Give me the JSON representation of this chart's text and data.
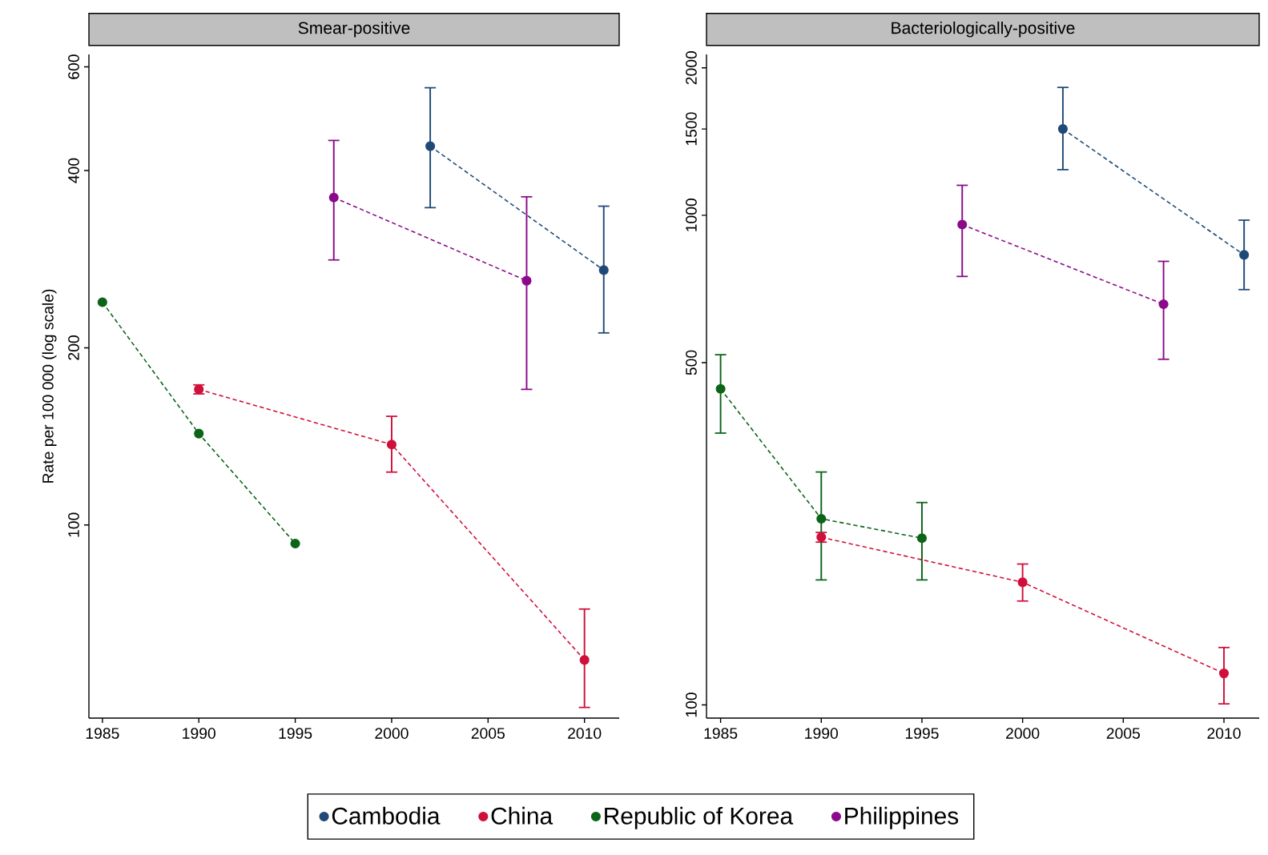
{
  "chart_data": [
    {
      "type": "line",
      "title": "Smear-positive",
      "ylabel": "Rate per 100 000 (log scale)",
      "log": "y",
      "xlim": [
        1984.3,
        2011.8
      ],
      "ylim": [
        47,
        630
      ],
      "xticks": [
        1985,
        1990,
        1995,
        2000,
        2005,
        2010
      ],
      "yticks": [
        100,
        200,
        400,
        600
      ],
      "marker": "circle",
      "line_style": "dashed",
      "legend": "bottom",
      "series": [
        {
          "name": "Cambodia",
          "color": "#1f4a78",
          "x": [
            2002,
            2011
          ],
          "values": [
            440,
            271
          ],
          "errors": [
            [
              346,
              553
            ],
            [
              212,
              348
            ]
          ]
        },
        {
          "name": "China",
          "color": "#d0103a",
          "x": [
            1990,
            2000,
            2010
          ],
          "values": [
            170,
            137,
            59
          ],
          "errors": [
            [
              167,
              173
            ],
            [
              123,
              153
            ],
            [
              49,
              72
            ]
          ]
        },
        {
          "name": "Republic of Korea",
          "color": "#0b6418",
          "x": [
            1985,
            1990,
            1995
          ],
          "values": [
            239,
            143,
            93
          ]
        },
        {
          "name": "Philippines",
          "color": "#8b0a8b",
          "x": [
            1997,
            2007
          ],
          "values": [
            360,
            260
          ],
          "errors": [
            [
              282,
              450
            ],
            [
              170,
              361
            ]
          ]
        }
      ]
    },
    {
      "type": "line",
      "title": "Bacteriologically-positive",
      "log": "y",
      "xlim": [
        1984.3,
        2011.75
      ],
      "ylim": [
        94,
        2130
      ],
      "xticks": [
        1985,
        1990,
        1995,
        2000,
        2005,
        2010
      ],
      "yticks": [
        100,
        500,
        1000,
        1500,
        2000
      ],
      "marker": "circle",
      "line_style": "dashed",
      "series": [
        {
          "color": "#1f4a78",
          "x": [
            2002,
            2011
          ],
          "values": [
            1500,
            830
          ],
          "errors": [
            [
              1239,
              1824
            ],
            [
              705,
              977
            ]
          ]
        },
        {
          "color": "#d0103a",
          "x": [
            1990,
            2000,
            2010
          ],
          "values": [
            220,
            178,
            116
          ],
          "errors": [
            [
              215,
              225
            ],
            [
              163,
              194
            ],
            [
              100.5,
              131
            ]
          ]
        },
        {
          "color": "#0b6418",
          "x": [
            1985,
            1990,
            1995
          ],
          "values": [
            442,
            240,
            219
          ],
          "errors": [
            [
              359,
              519
            ],
            [
              180,
              299
            ],
            [
              180,
              259
            ]
          ]
        },
        {
          "color": "#8b0a8b",
          "x": [
            1997,
            2007
          ],
          "values": [
            957,
            658
          ],
          "errors": [
            [
              750,
              1151
            ],
            [
              508,
              805
            ]
          ]
        }
      ]
    }
  ]
}
